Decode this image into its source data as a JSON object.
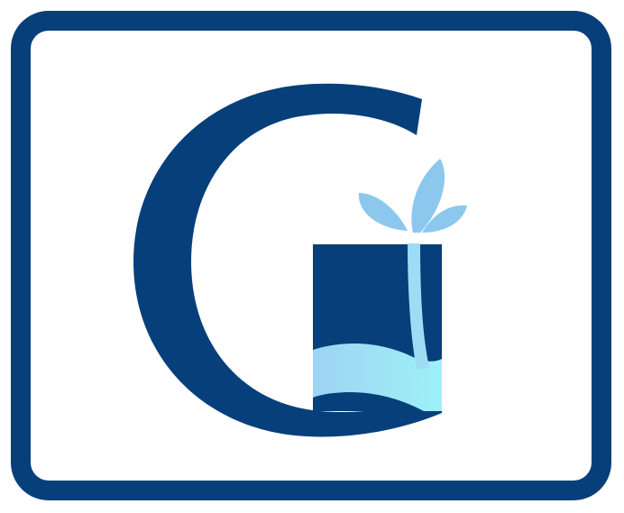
{
  "logo": {
    "letter": "G",
    "colors": {
      "navy": "#063f7a",
      "light_blue": "#8cc8ee",
      "water_start": "#9ed3f3",
      "water_end": "#9df1f7",
      "background": "#ffffff"
    },
    "icon": "fountain-g-logo"
  }
}
